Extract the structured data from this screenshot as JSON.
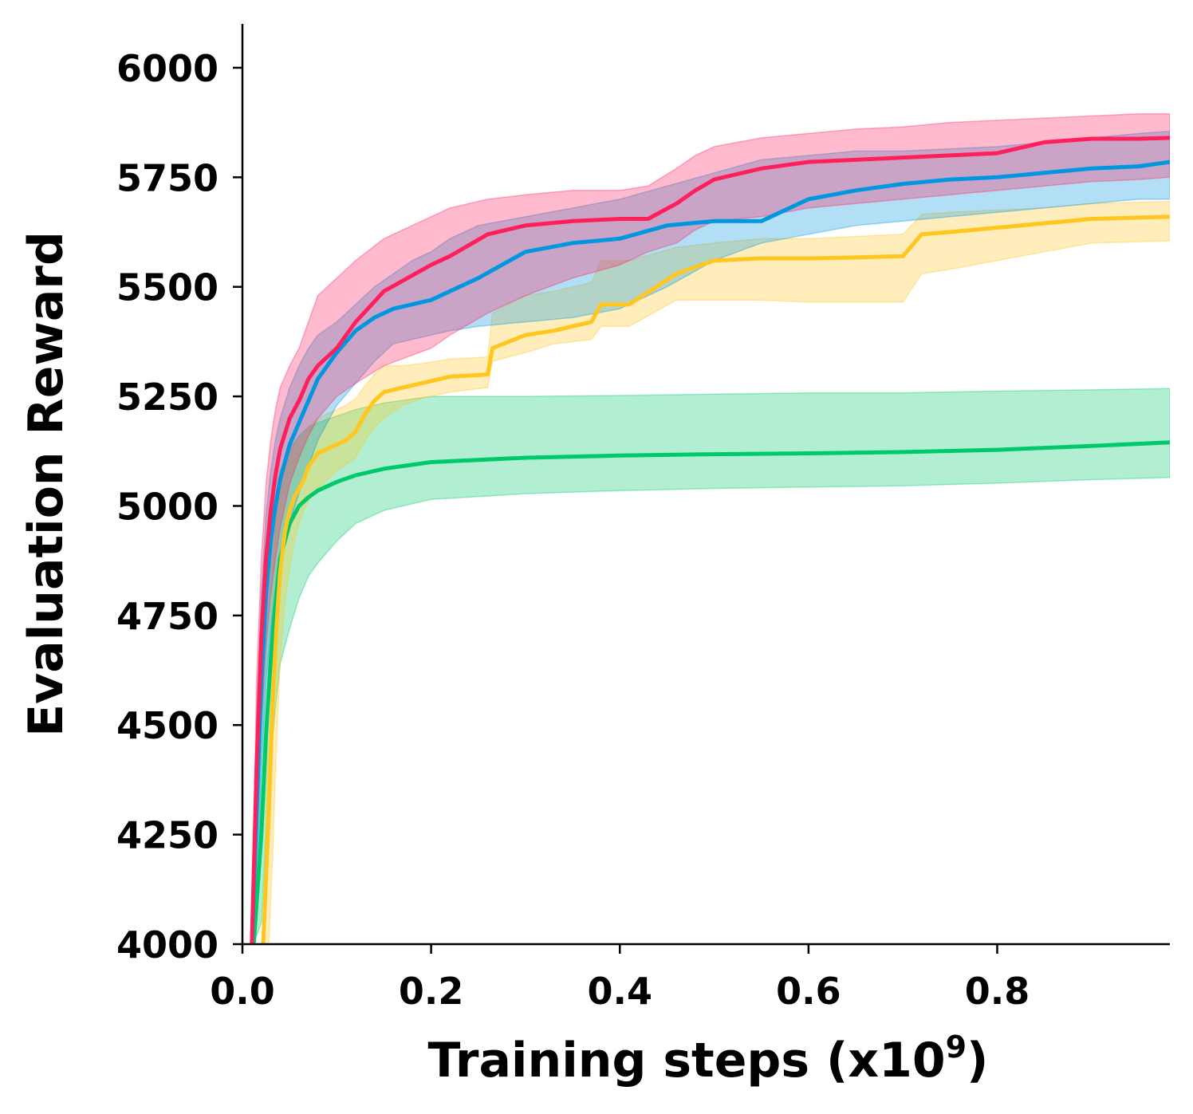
{
  "chart_data": {
    "type": "line",
    "title": "",
    "xlabel": {
      "text": "Training steps (x10",
      "superscript": "9",
      "suffix": ")"
    },
    "ylabel": "Evaluation Reward",
    "xlim": [
      0.0,
      0.983
    ],
    "ylim": [
      4000,
      6100
    ],
    "xticks": [
      0.0,
      0.2,
      0.4,
      0.6,
      0.8
    ],
    "xtick_labels": [
      "0.0",
      "0.2",
      "0.4",
      "0.6",
      "0.8"
    ],
    "yticks": [
      4000,
      4250,
      4500,
      4750,
      5000,
      5250,
      5500,
      5750,
      6000
    ],
    "ytick_labels": [
      "4000",
      "4250",
      "4500",
      "4750",
      "5000",
      "5250",
      "5500",
      "5750",
      "6000"
    ],
    "grid": false,
    "legend": "none",
    "series": [
      {
        "name": "green",
        "color": "#00c96b",
        "x": [
          0.012,
          0.02,
          0.025,
          0.03,
          0.035,
          0.04,
          0.05,
          0.06,
          0.07,
          0.08,
          0.1,
          0.12,
          0.15,
          0.2,
          0.3,
          0.4,
          0.5,
          0.6,
          0.7,
          0.8,
          0.9,
          0.983
        ],
        "y": [
          4000,
          4250,
          4480,
          4650,
          4780,
          4880,
          4960,
          5000,
          5020,
          5035,
          5055,
          5070,
          5085,
          5100,
          5110,
          5115,
          5118,
          5120,
          5123,
          5128,
          5137,
          5145
        ],
        "lower": [
          4000,
          4050,
          4250,
          4420,
          4540,
          4640,
          4720,
          4790,
          4840,
          4870,
          4920,
          4960,
          4990,
          5015,
          5028,
          5035,
          5040,
          5043,
          5046,
          5052,
          5060,
          5065
        ],
        "upper": [
          4000,
          4550,
          4800,
          4950,
          5020,
          5080,
          5130,
          5160,
          5180,
          5190,
          5205,
          5220,
          5235,
          5250,
          5250,
          5252,
          5255,
          5258,
          5258,
          5262,
          5265,
          5268
        ]
      },
      {
        "name": "yellow",
        "color": "#ffc61f",
        "x": [
          0.022,
          0.028,
          0.032,
          0.036,
          0.04,
          0.045,
          0.05,
          0.055,
          0.06,
          0.065,
          0.07,
          0.08,
          0.09,
          0.1,
          0.11,
          0.12,
          0.13,
          0.14,
          0.15,
          0.17,
          0.19,
          0.22,
          0.26,
          0.265,
          0.3,
          0.33,
          0.37,
          0.38,
          0.41,
          0.46,
          0.5,
          0.55,
          0.6,
          0.65,
          0.7,
          0.72,
          0.75,
          0.8,
          0.85,
          0.9,
          0.983
        ],
        "y": [
          4000,
          4300,
          4550,
          4720,
          4850,
          4940,
          4990,
          5020,
          5040,
          5060,
          5090,
          5120,
          5130,
          5140,
          5150,
          5170,
          5210,
          5240,
          5260,
          5270,
          5280,
          5295,
          5300,
          5360,
          5390,
          5400,
          5420,
          5460,
          5460,
          5530,
          5560,
          5565,
          5565,
          5567,
          5570,
          5620,
          5625,
          5635,
          5645,
          5655,
          5660
        ],
        "lower": [
          4000,
          4000,
          4200,
          4450,
          4650,
          4780,
          4860,
          4920,
          4960,
          4990,
          5010,
          5040,
          5060,
          5080,
          5095,
          5110,
          5150,
          5180,
          5200,
          5230,
          5245,
          5260,
          5270,
          5330,
          5350,
          5370,
          5380,
          5410,
          5410,
          5470,
          5470,
          5470,
          5465,
          5465,
          5465,
          5530,
          5540,
          5560,
          5580,
          5600,
          5605
        ],
        "upper": [
          4000,
          4600,
          4850,
          4980,
          5050,
          5100,
          5120,
          5140,
          5150,
          5160,
          5180,
          5200,
          5210,
          5220,
          5230,
          5245,
          5275,
          5300,
          5320,
          5320,
          5325,
          5335,
          5340,
          5440,
          5480,
          5490,
          5510,
          5560,
          5560,
          5590,
          5600,
          5610,
          5610,
          5615,
          5620,
          5665,
          5670,
          5675,
          5680,
          5690,
          5695
        ]
      },
      {
        "name": "blue",
        "color": "#0096e0",
        "x": [
          0.01,
          0.015,
          0.02,
          0.025,
          0.03,
          0.035,
          0.04,
          0.05,
          0.06,
          0.07,
          0.08,
          0.1,
          0.12,
          0.14,
          0.16,
          0.18,
          0.2,
          0.22,
          0.25,
          0.3,
          0.35,
          0.4,
          0.45,
          0.5,
          0.55,
          0.6,
          0.65,
          0.7,
          0.75,
          0.8,
          0.85,
          0.9,
          0.95,
          0.983
        ],
        "y": [
          4000,
          4300,
          4600,
          4800,
          4920,
          5000,
          5060,
          5140,
          5190,
          5240,
          5290,
          5350,
          5400,
          5430,
          5450,
          5460,
          5470,
          5490,
          5520,
          5580,
          5600,
          5610,
          5640,
          5650,
          5650,
          5700,
          5720,
          5735,
          5745,
          5750,
          5760,
          5770,
          5775,
          5785
        ],
        "lower": [
          4000,
          4100,
          4400,
          4600,
          4720,
          4800,
          4870,
          4960,
          5030,
          5090,
          5150,
          5230,
          5280,
          5330,
          5370,
          5380,
          5390,
          5400,
          5410,
          5420,
          5430,
          5450,
          5500,
          5560,
          5600,
          5620,
          5640,
          5650,
          5660,
          5670,
          5680,
          5690,
          5700,
          5700
        ],
        "upper": [
          4000,
          4500,
          4800,
          4980,
          5080,
          5150,
          5200,
          5270,
          5320,
          5360,
          5390,
          5420,
          5460,
          5500,
          5530,
          5560,
          5580,
          5610,
          5640,
          5660,
          5680,
          5700,
          5730,
          5760,
          5790,
          5800,
          5810,
          5810,
          5815,
          5820,
          5830,
          5840,
          5850,
          5855
        ]
      },
      {
        "name": "pink",
        "color": "#ff1f5b",
        "x": [
          0.01,
          0.015,
          0.02,
          0.025,
          0.03,
          0.035,
          0.04,
          0.05,
          0.06,
          0.07,
          0.08,
          0.1,
          0.12,
          0.15,
          0.2,
          0.22,
          0.26,
          0.3,
          0.35,
          0.4,
          0.43,
          0.46,
          0.48,
          0.5,
          0.55,
          0.6,
          0.65,
          0.7,
          0.75,
          0.8,
          0.85,
          0.9,
          0.95,
          0.983
        ],
        "y": [
          4000,
          4400,
          4700,
          4880,
          4990,
          5070,
          5130,
          5200,
          5240,
          5290,
          5320,
          5360,
          5420,
          5490,
          5550,
          5570,
          5620,
          5640,
          5650,
          5655,
          5655,
          5690,
          5720,
          5745,
          5770,
          5785,
          5790,
          5795,
          5800,
          5805,
          5830,
          5838,
          5838,
          5840
        ],
        "lower": [
          4000,
          4200,
          4500,
          4680,
          4800,
          4880,
          4950,
          5050,
          5110,
          5160,
          5200,
          5250,
          5280,
          5320,
          5360,
          5390,
          5440,
          5480,
          5520,
          5550,
          5580,
          5600,
          5630,
          5650,
          5660,
          5680,
          5690,
          5700,
          5710,
          5720,
          5730,
          5740,
          5745,
          5750
        ],
        "upper": [
          4000,
          4600,
          4880,
          5050,
          5150,
          5220,
          5270,
          5320,
          5360,
          5420,
          5480,
          5520,
          5560,
          5610,
          5660,
          5680,
          5700,
          5710,
          5720,
          5720,
          5730,
          5770,
          5800,
          5820,
          5840,
          5850,
          5860,
          5865,
          5875,
          5880,
          5885,
          5890,
          5895,
          5895
        ]
      }
    ]
  }
}
